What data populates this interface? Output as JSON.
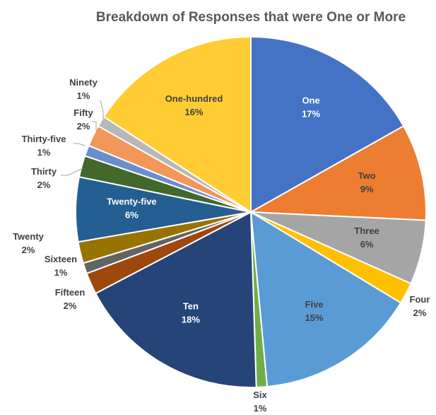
{
  "chart_data": {
    "type": "pie",
    "title": "Breakdown of Responses that were One or More",
    "legend": "none",
    "slices": [
      {
        "label": "One",
        "percent_label": "17%",
        "value": 17,
        "color": "#4472C4",
        "label_style": "inside",
        "label_color": "#ffffff"
      },
      {
        "label": "Two",
        "percent_label": "9%",
        "value": 9,
        "color": "#ED7D31",
        "label_style": "inside",
        "label_color": "#404040"
      },
      {
        "label": "Three",
        "percent_label": "6%",
        "value": 6,
        "color": "#A5A5A5",
        "label_style": "inside",
        "label_color": "#404040"
      },
      {
        "label": "Four",
        "percent_label": "2%",
        "value": 2,
        "color": "#FFC000",
        "label_style": "outside",
        "label_color": "#404040"
      },
      {
        "label": "Five",
        "percent_label": "15%",
        "value": 15,
        "color": "#5B9BD5",
        "label_style": "inside",
        "label_color": "#404040"
      },
      {
        "label": "Six",
        "percent_label": "1%",
        "value": 1,
        "color": "#70AD47",
        "label_style": "outside",
        "label_color": "#404040"
      },
      {
        "label": "Ten",
        "percent_label": "18%",
        "value": 18,
        "color": "#264478",
        "label_style": "inside",
        "label_color": "#ffffff"
      },
      {
        "label": "Fifteen",
        "percent_label": "2%",
        "value": 2,
        "color": "#9E480E",
        "label_style": "outside",
        "label_color": "#404040"
      },
      {
        "label": "Sixteen",
        "percent_label": "1%",
        "value": 1,
        "color": "#636363",
        "label_style": "outside",
        "label_color": "#404040"
      },
      {
        "label": "Twenty",
        "percent_label": "2%",
        "value": 2,
        "color": "#997300",
        "label_style": "outside",
        "label_color": "#404040"
      },
      {
        "label": "Twenty-five",
        "percent_label": "6%",
        "value": 6,
        "color": "#255E91",
        "label_style": "inside",
        "label_color": "#ffffff"
      },
      {
        "label": "Thirty",
        "percent_label": "2%",
        "value": 2,
        "color": "#43682B",
        "label_style": "outside",
        "label_color": "#404040"
      },
      {
        "label": "Thirty-five",
        "percent_label": "1%",
        "value": 1,
        "color": "#698ED0",
        "label_style": "outside",
        "label_color": "#404040"
      },
      {
        "label": "Fifty",
        "percent_label": "2%",
        "value": 2,
        "color": "#F1975A",
        "label_style": "outside",
        "label_color": "#404040"
      },
      {
        "label": "Ninety",
        "percent_label": "1%",
        "value": 1,
        "color": "#B7B7B7",
        "label_style": "outside",
        "label_color": "#404040"
      },
      {
        "label": "One-hundred",
        "percent_label": "16%",
        "value": 16,
        "color": "#FFCD33",
        "label_style": "inside",
        "label_color": "#404040"
      }
    ]
  }
}
